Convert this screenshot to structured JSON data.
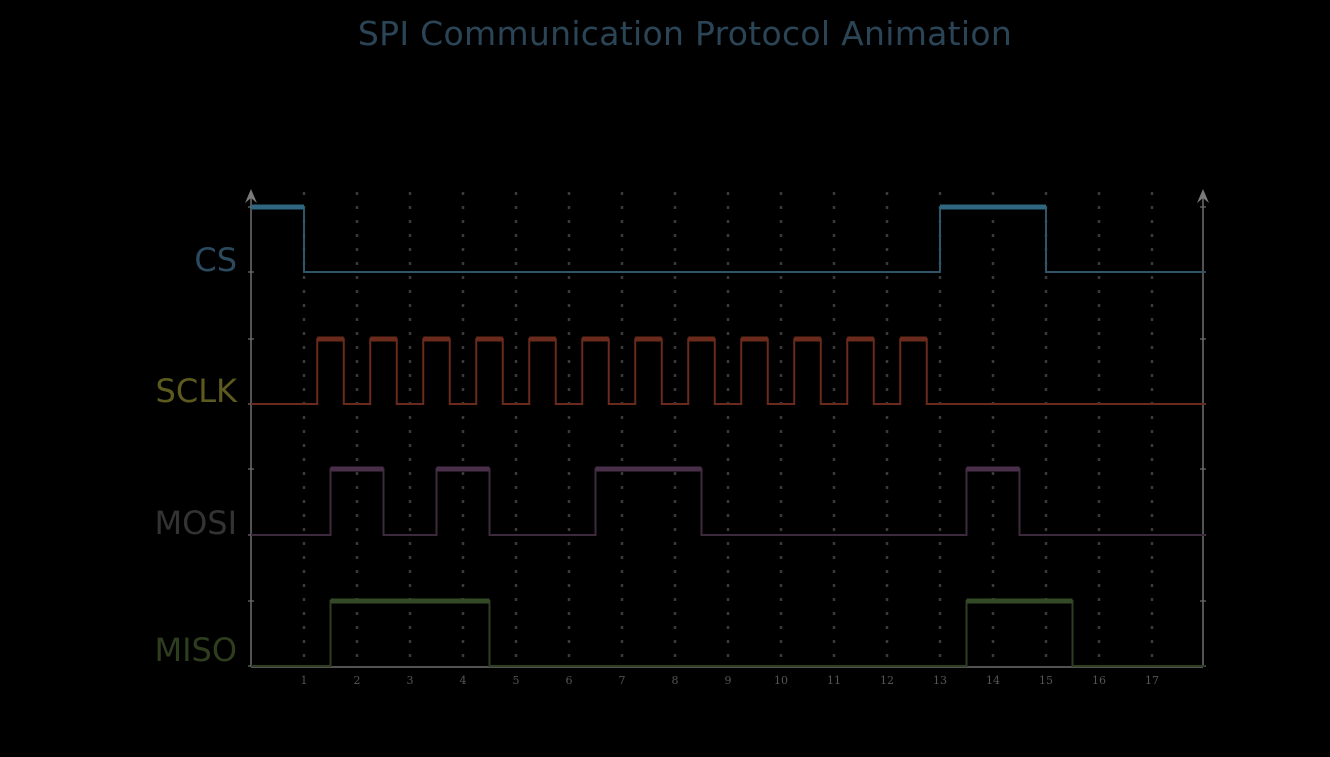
{
  "title": "SPI Communication Protocol Animation",
  "x_ticks": [
    "1",
    "2",
    "3",
    "4",
    "5",
    "6",
    "7",
    "8",
    "9",
    "10",
    "11",
    "12",
    "13",
    "14",
    "15",
    "16",
    "17"
  ],
  "x_range": [
    0,
    18
  ],
  "signals": [
    {
      "name": "CS",
      "label_color": "#2b4a5e",
      "line_color": "#2e5568",
      "high_color": "#2f6680",
      "edges": [
        [
          0,
          1
        ],
        [
          1,
          0
        ],
        [
          13,
          1
        ],
        [
          15,
          0
        ],
        [
          18,
          0
        ]
      ]
    },
    {
      "name": "SCLK",
      "label_color": "#5c5a1e",
      "line_color": "#6a2a1c",
      "high_color": "#6a2a1c",
      "edges": [
        [
          0,
          0
        ],
        [
          1.25,
          1
        ],
        [
          1.75,
          0
        ],
        [
          2.25,
          1
        ],
        [
          2.75,
          0
        ],
        [
          3.25,
          1
        ],
        [
          3.75,
          0
        ],
        [
          4.25,
          1
        ],
        [
          4.75,
          0
        ],
        [
          5.25,
          1
        ],
        [
          5.75,
          0
        ],
        [
          6.25,
          1
        ],
        [
          6.75,
          0
        ],
        [
          7.25,
          1
        ],
        [
          7.75,
          0
        ],
        [
          8.25,
          1
        ],
        [
          8.75,
          0
        ],
        [
          9.25,
          1
        ],
        [
          9.75,
          0
        ],
        [
          10.25,
          1
        ],
        [
          10.75,
          0
        ],
        [
          11.25,
          1
        ],
        [
          11.75,
          0
        ],
        [
          12.25,
          1
        ],
        [
          12.75,
          0
        ],
        [
          18,
          0
        ]
      ]
    },
    {
      "name": "MOSI",
      "label_color": "#333333",
      "line_color": "#3d2a3d",
      "high_color": "#4a2f4a",
      "edges": [
        [
          0,
          0
        ],
        [
          1.5,
          1
        ],
        [
          2.5,
          0
        ],
        [
          3.5,
          1
        ],
        [
          4.5,
          0
        ],
        [
          6.5,
          1
        ],
        [
          8.5,
          0
        ],
        [
          13.5,
          1
        ],
        [
          14.5,
          0
        ],
        [
          18,
          0
        ]
      ]
    },
    {
      "name": "MISO",
      "label_color": "#2f3d1f",
      "line_color": "#2f3d22",
      "high_color": "#344a26",
      "edges": [
        [
          0,
          0
        ],
        [
          1.5,
          1
        ],
        [
          4.5,
          0
        ],
        [
          13.5,
          1
        ],
        [
          15.5,
          0
        ],
        [
          18,
          0
        ]
      ]
    }
  ]
}
